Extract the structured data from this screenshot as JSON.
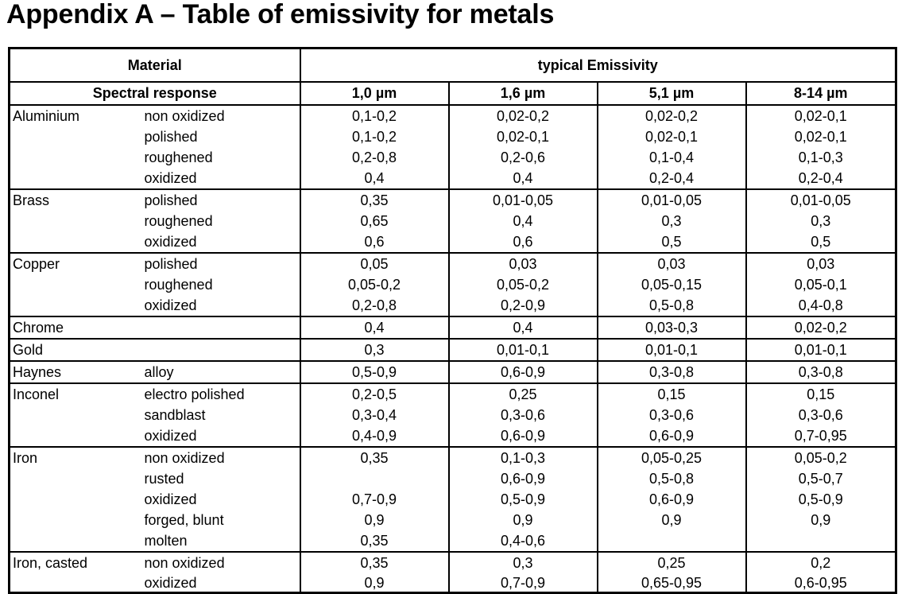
{
  "title": "Appendix A – Table of emissivity for metals",
  "table": {
    "header_material": "Material",
    "header_emissivity": "typical Emissivity",
    "header_spectral": "Spectral response",
    "wavelengths": [
      "1,0 µm",
      "1,6 µm",
      "5,1 µm",
      "8-14 µm"
    ],
    "groups": [
      {
        "material": "Aluminium",
        "rows": [
          {
            "variant": "non oxidized",
            "values": [
              "0,1-0,2",
              "0,02-0,2",
              "0,02-0,2",
              "0,02-0,1"
            ]
          },
          {
            "variant": "polished",
            "values": [
              "0,1-0,2",
              "0,02-0,1",
              "0,02-0,1",
              "0,02-0,1"
            ]
          },
          {
            "variant": "roughened",
            "values": [
              "0,2-0,8",
              "0,2-0,6",
              "0,1-0,4",
              "0,1-0,3"
            ]
          },
          {
            "variant": "oxidized",
            "values": [
              "0,4",
              "0,4",
              "0,2-0,4",
              "0,2-0,4"
            ]
          }
        ]
      },
      {
        "material": "Brass",
        "rows": [
          {
            "variant": "polished",
            "values": [
              "0,35",
              "0,01-0,05",
              "0,01-0,05",
              "0,01-0,05"
            ]
          },
          {
            "variant": "roughened",
            "values": [
              "0,65",
              "0,4",
              "0,3",
              "0,3"
            ]
          },
          {
            "variant": "oxidized",
            "values": [
              "0,6",
              "0,6",
              "0,5",
              "0,5"
            ]
          }
        ]
      },
      {
        "material": "Copper",
        "rows": [
          {
            "variant": "polished",
            "values": [
              "0,05",
              "0,03",
              "0,03",
              "0,03"
            ]
          },
          {
            "variant": "roughened",
            "values": [
              "0,05-0,2",
              "0,05-0,2",
              "0,05-0,15",
              "0,05-0,1"
            ]
          },
          {
            "variant": "oxidized",
            "values": [
              "0,2-0,8",
              "0,2-0,9",
              "0,5-0,8",
              "0,4-0,8"
            ]
          }
        ]
      },
      {
        "material": "Chrome",
        "rows": [
          {
            "variant": "",
            "values": [
              "0,4",
              "0,4",
              "0,03-0,3",
              "0,02-0,2"
            ]
          }
        ]
      },
      {
        "material": "Gold",
        "rows": [
          {
            "variant": "",
            "values": [
              "0,3",
              "0,01-0,1",
              "0,01-0,1",
              "0,01-0,1"
            ]
          }
        ]
      },
      {
        "material": "Haynes",
        "rows": [
          {
            "variant": "alloy",
            "values": [
              "0,5-0,9",
              "0,6-0,9",
              "0,3-0,8",
              "0,3-0,8"
            ]
          }
        ]
      },
      {
        "material": "Inconel",
        "rows": [
          {
            "variant": "electro polished",
            "values": [
              "0,2-0,5",
              "0,25",
              "0,15",
              "0,15"
            ]
          },
          {
            "variant": "sandblast",
            "values": [
              "0,3-0,4",
              "0,3-0,6",
              "0,3-0,6",
              "0,3-0,6"
            ]
          },
          {
            "variant": "oxidized",
            "values": [
              "0,4-0,9",
              "0,6-0,9",
              "0,6-0,9",
              "0,7-0,95"
            ]
          }
        ]
      },
      {
        "material": "Iron",
        "rows": [
          {
            "variant": "non oxidized",
            "values": [
              "0,35",
              "0,1-0,3",
              "0,05-0,25",
              "0,05-0,2"
            ]
          },
          {
            "variant": "rusted",
            "values": [
              "",
              "0,6-0,9",
              "0,5-0,8",
              "0,5-0,7"
            ]
          },
          {
            "variant": "oxidized",
            "values": [
              "0,7-0,9",
              "0,5-0,9",
              "0,6-0,9",
              "0,5-0,9"
            ]
          },
          {
            "variant": "forged, blunt",
            "values": [
              "0,9",
              "0,9",
              "0,9",
              "0,9"
            ]
          },
          {
            "variant": "molten",
            "values": [
              "0,35",
              "0,4-0,6",
              "",
              ""
            ]
          }
        ]
      },
      {
        "material": "Iron, casted",
        "rows": [
          {
            "variant": "non oxidized",
            "values": [
              "0,35",
              "0,3",
              "0,25",
              "0,2"
            ]
          },
          {
            "variant": "oxidized",
            "values": [
              "0,9",
              "0,7-0,9",
              "0,65-0,95",
              "0,6-0,95"
            ]
          }
        ]
      }
    ]
  }
}
